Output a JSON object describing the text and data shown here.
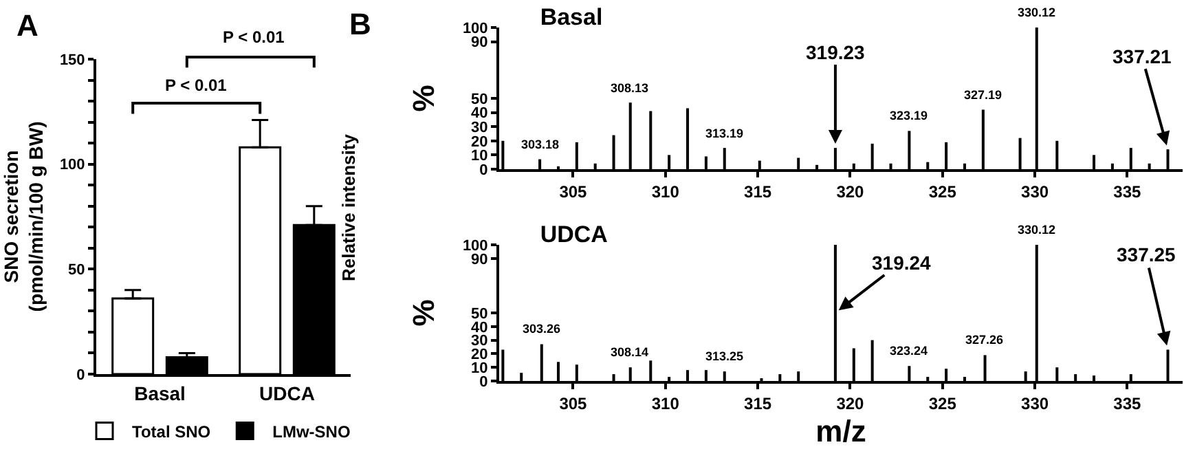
{
  "chart_data": [
    {
      "type": "bar",
      "categories": [
        "Basal",
        "UDCA"
      ],
      "ylabel": "SNO secretion\n(pmol/min/100 g BW)",
      "ylim": [
        0,
        150
      ],
      "yticks": [
        0,
        {
          "value": 10,
          "label": null
        },
        {
          "value": 20,
          "label": null
        },
        {
          "value": 30,
          "label": null
        },
        {
          "value": 40,
          "label": null
        },
        50,
        {
          "value": 60,
          "label": null
        },
        {
          "value": 70,
          "label": null
        },
        {
          "value": 80,
          "label": null
        },
        {
          "value": 90,
          "label": null
        },
        100,
        {
          "value": 110,
          "label": null
        },
        {
          "value": 120,
          "label": null
        },
        {
          "value": 130,
          "label": null
        },
        {
          "value": 140,
          "label": null
        },
        150
      ],
      "series": [
        {
          "name": "Total SNO",
          "color": "#ffffff",
          "values": [
            36,
            108
          ],
          "errors": [
            [
              36,
              40
            ],
            [
              108,
              121
            ]
          ]
        },
        {
          "name": "LMw-SNO",
          "color": "#000000",
          "values": [
            8,
            71
          ],
          "errors": [
            [
              8,
              10
            ],
            [
              71,
              80
            ]
          ]
        }
      ],
      "legend": "bottom",
      "annotations": [
        "A",
        "P < 0.01",
        "P < 0.01"
      ]
    },
    {
      "type": "bar",
      "title": "Basal",
      "color": "#000000",
      "x": [
        301.2,
        303.2,
        304.2,
        305.2,
        306.2,
        307.2,
        308.1,
        309.2,
        310.2,
        311.2,
        312.2,
        313.2,
        315.1,
        317.2,
        318.2,
        319.2,
        320.2,
        321.2,
        322.2,
        323.2,
        324.2,
        325.2,
        326.2,
        327.2,
        329.2,
        330.1,
        331.2,
        333.2,
        334.2,
        335.2,
        336.2,
        337.2
      ],
      "values": [
        20,
        7,
        2,
        19,
        4,
        24,
        47,
        41,
        10,
        43,
        9,
        15,
        6,
        8,
        3,
        15,
        4,
        18,
        4,
        27,
        5,
        19,
        4,
        42,
        22,
        100,
        20,
        10,
        4,
        15,
        4,
        14
      ],
      "xlim": [
        301,
        338
      ],
      "xticks": [
        305,
        310,
        315,
        320,
        325,
        330,
        335
      ],
      "ylim": [
        0,
        100
      ],
      "yticks": [
        0,
        10,
        20,
        30,
        40,
        50,
        90,
        100
      ],
      "ylabel": "%",
      "annotations": [
        "B",
        "Relative intensity",
        {
          "text": "303.18",
          "x": 303.2,
          "y": 7
        },
        {
          "text": "308.13",
          "x": 308.1,
          "y": 47
        },
        {
          "text": "313.19",
          "x": 313.2,
          "y": 15
        },
        {
          "text": "319.23",
          "x": 319.2,
          "y": 15
        },
        {
          "text": "323.19",
          "x": 323.2,
          "y": 27
        },
        {
          "text": "327.19",
          "x": 327.2,
          "y": 42
        },
        {
          "text": "330.12",
          "x": 330.1,
          "y": 100
        },
        {
          "text": "337.21",
          "x": 337.2,
          "y": 14
        }
      ]
    },
    {
      "type": "bar",
      "title": "UDCA",
      "color": "#000000",
      "x": [
        301.2,
        302.2,
        303.3,
        304.2,
        305.2,
        307.2,
        308.1,
        309.2,
        310.2,
        311.2,
        312.2,
        313.2,
        315.2,
        316.2,
        317.2,
        319.2,
        320.2,
        321.2,
        323.2,
        324.2,
        325.2,
        326.2,
        327.3,
        329.5,
        330.1,
        331.2,
        332.2,
        333.2,
        335.2,
        337.2
      ],
      "values": [
        23,
        6,
        27,
        14,
        12,
        5,
        10,
        15,
        3,
        8,
        8,
        7,
        2,
        5,
        7,
        100,
        24,
        30,
        11,
        3,
        9,
        3,
        19,
        7,
        100,
        10,
        5,
        4,
        5,
        23
      ],
      "xlim": [
        301,
        338
      ],
      "xticks": [
        305,
        310,
        315,
        320,
        325,
        330,
        335
      ],
      "ylim": [
        0,
        100
      ],
      "yticks": [
        0,
        10,
        20,
        30,
        40,
        50,
        90,
        100
      ],
      "ylabel": "%",
      "xlabel": "m/z",
      "annotations": [
        {
          "text": "303.26",
          "x": 303.3,
          "y": 27
        },
        {
          "text": "308.14",
          "x": 308.1,
          "y": 10
        },
        {
          "text": "313.25",
          "x": 313.2,
          "y": 7
        },
        {
          "text": "319.24",
          "x": 319.2,
          "y": 50
        },
        {
          "text": "323.24",
          "x": 323.2,
          "y": 11
        },
        {
          "text": "327.26",
          "x": 327.3,
          "y": 19
        },
        {
          "text": "330.12",
          "x": 330.1,
          "y": 100
        },
        {
          "text": "337.25",
          "x": 337.2,
          "y": 23
        }
      ]
    }
  ]
}
